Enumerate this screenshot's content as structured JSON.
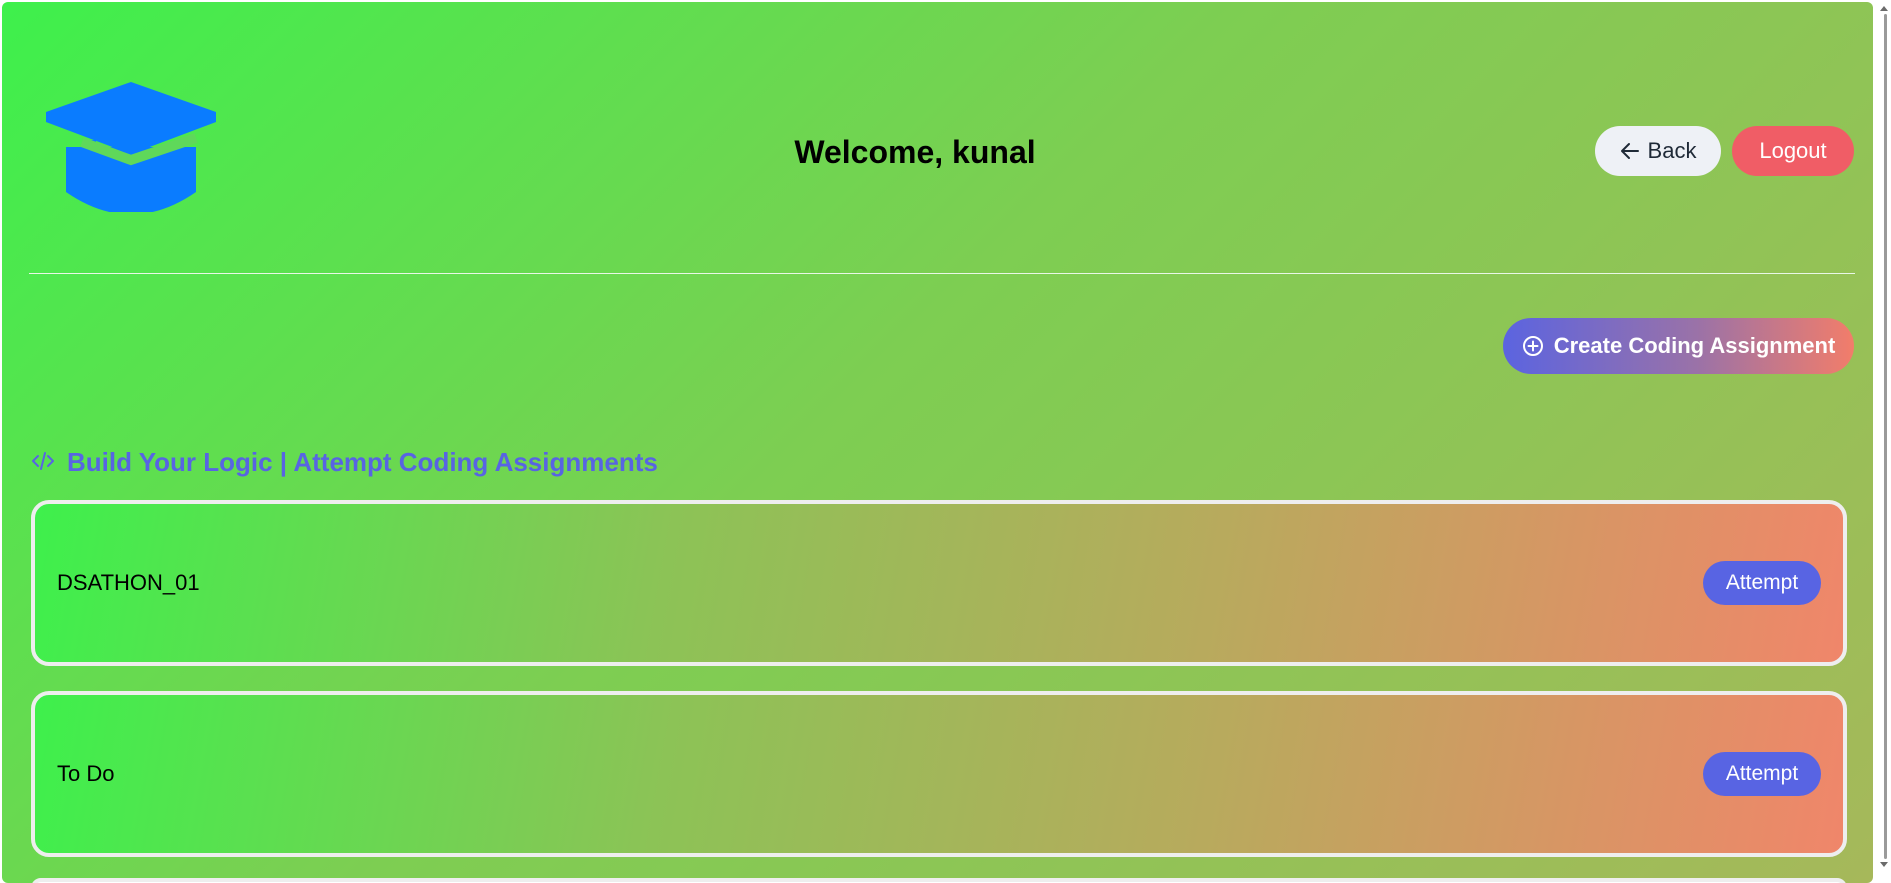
{
  "header": {
    "welcome_text": "Welcome, kunal",
    "back_label": "Back",
    "logout_label": "Logout"
  },
  "actions": {
    "create_label": "Create Coding Assignment"
  },
  "section": {
    "title": "Build Your Logic | Attempt Coding Assignments"
  },
  "assignments": [
    {
      "title": "DSATHON_01",
      "action_label": "Attempt"
    },
    {
      "title": "To Do",
      "action_label": "Attempt"
    }
  ],
  "colors": {
    "logo_blue": "#0a7cff",
    "accent_purple": "#5864e3",
    "logout_red": "#f05d66",
    "back_bg": "#eef1f6"
  },
  "icons": {
    "logo": "graduation-cap-icon",
    "back": "arrow-left-icon",
    "create": "plus-circle-icon",
    "section": "code-icon"
  }
}
